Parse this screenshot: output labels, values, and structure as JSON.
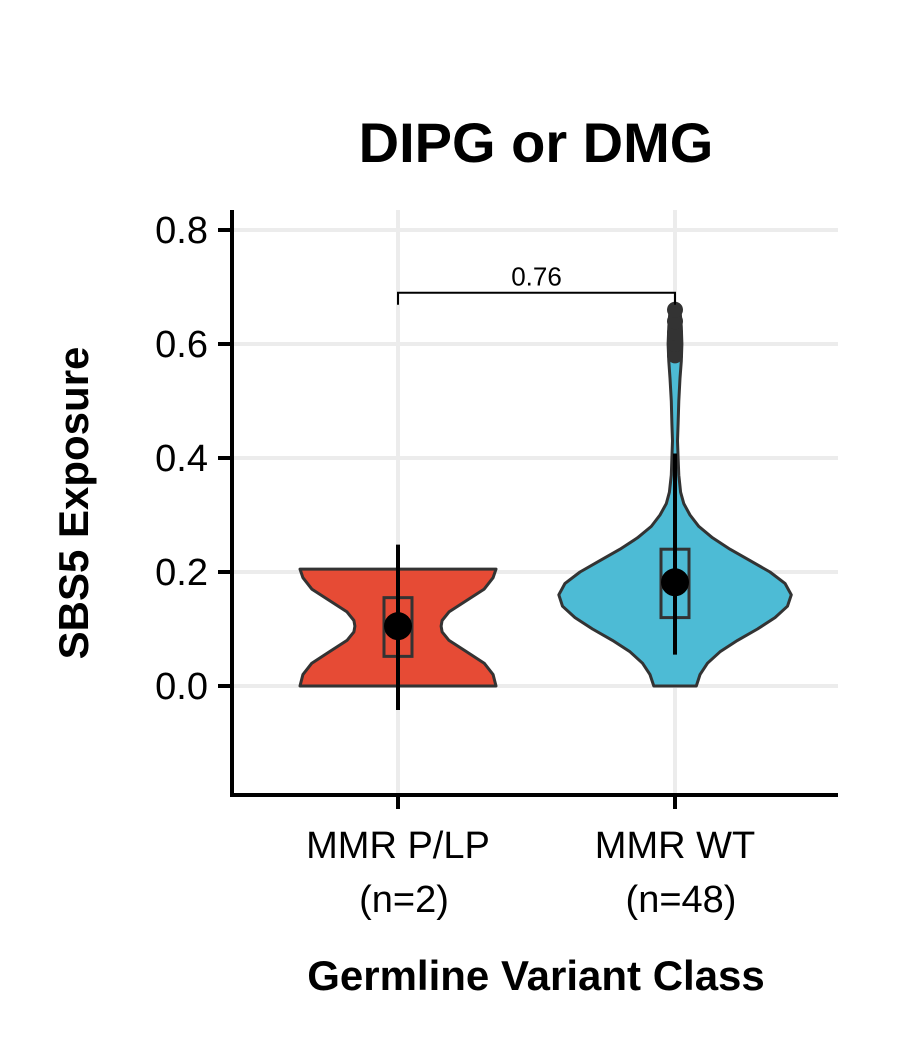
{
  "chart_data": {
    "type": "violin",
    "title": "DIPG or DMG",
    "xlabel": "Germline Variant Class",
    "ylabel": "SBS5 Exposure",
    "ylim": [
      -0.19,
      0.83
    ],
    "yticks": [
      0.0,
      0.2,
      0.4,
      0.6,
      0.8
    ],
    "ytick_labels": [
      "0.0",
      "0.2",
      "0.4",
      "0.6",
      "0.8"
    ],
    "grid": true,
    "legend": "none",
    "categories": [
      {
        "label_line1": "MMR P/LP",
        "label_line2": "(n=2)",
        "color": "#E64B35",
        "min": 0.0,
        "max": 0.205,
        "q1": 0.052,
        "median": 0.105,
        "q3": 0.155,
        "mean": 0.105,
        "ci_low": -0.042,
        "ci_high": 0.248,
        "density": [
          [
            0.0,
            1.0
          ],
          [
            0.02,
            0.97
          ],
          [
            0.04,
            0.88
          ],
          [
            0.06,
            0.7
          ],
          [
            0.08,
            0.52
          ],
          [
            0.095,
            0.45
          ],
          [
            0.105,
            0.44
          ],
          [
            0.115,
            0.45
          ],
          [
            0.13,
            0.52
          ],
          [
            0.15,
            0.7
          ],
          [
            0.17,
            0.88
          ],
          [
            0.19,
            0.97
          ],
          [
            0.205,
            1.0
          ]
        ],
        "outliers": []
      },
      {
        "label_line1": "MMR WT",
        "label_line2": "(n=48)",
        "color": "#4DBBD5",
        "min": 0.0,
        "max": 0.66,
        "q1": 0.12,
        "median": 0.18,
        "q3": 0.24,
        "mean": 0.182,
        "ci_low": 0.055,
        "ci_high": 0.408,
        "density": [
          [
            0.0,
            0.17
          ],
          [
            0.02,
            0.2
          ],
          [
            0.04,
            0.26
          ],
          [
            0.06,
            0.36
          ],
          [
            0.08,
            0.5
          ],
          [
            0.1,
            0.66
          ],
          [
            0.12,
            0.8
          ],
          [
            0.14,
            0.9
          ],
          [
            0.16,
            0.93
          ],
          [
            0.18,
            0.88
          ],
          [
            0.2,
            0.76
          ],
          [
            0.22,
            0.6
          ],
          [
            0.24,
            0.44
          ],
          [
            0.26,
            0.3
          ],
          [
            0.28,
            0.19
          ],
          [
            0.3,
            0.12
          ],
          [
            0.32,
            0.07
          ],
          [
            0.34,
            0.045
          ],
          [
            0.37,
            0.03
          ],
          [
            0.4,
            0.025
          ],
          [
            0.43,
            0.02
          ],
          [
            0.46,
            0.025
          ],
          [
            0.5,
            0.03
          ],
          [
            0.54,
            0.04
          ],
          [
            0.57,
            0.05
          ],
          [
            0.6,
            0.055
          ],
          [
            0.63,
            0.05
          ],
          [
            0.66,
            0.04
          ]
        ],
        "outliers": [
          0.58,
          0.6,
          0.62,
          0.64,
          0.66
        ]
      }
    ],
    "comparison": {
      "between": [
        0,
        1
      ],
      "label": "0.76",
      "y": 0.69
    }
  }
}
